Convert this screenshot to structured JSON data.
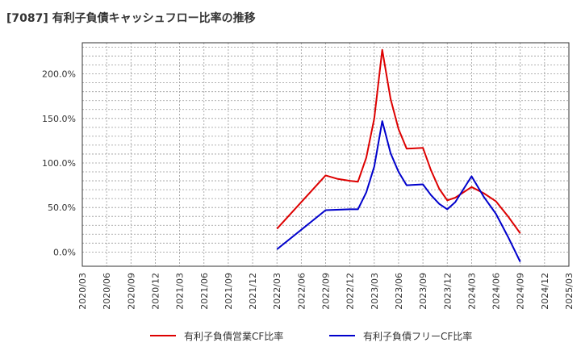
{
  "chart_data": {
    "type": "line",
    "title": "[7087]  有利子負債キャッシュフロー比率の推移",
    "x_ticks": [
      "2020/03",
      "2020/06",
      "2020/09",
      "2020/12",
      "2021/03",
      "2021/06",
      "2021/09",
      "2021/12",
      "2022/03",
      "2022/06",
      "2022/09",
      "2022/12",
      "2023/03",
      "2023/06",
      "2023/09",
      "2023/12",
      "2024/03",
      "2024/06",
      "2024/09",
      "2024/12",
      "2025/03"
    ],
    "y_ticks": [
      "0.0%",
      "50.0%",
      "100.0%",
      "150.0%",
      "200.0%"
    ],
    "y_tick_values": [
      0,
      50,
      100,
      150,
      200
    ],
    "ylim": [
      -16,
      235
    ],
    "grid": true,
    "legend_position": "bottom",
    "series": [
      {
        "name": "有利子負債営業CF比率",
        "color": "#dd0000",
        "points": [
          [
            8,
            26
          ],
          [
            10,
            86
          ],
          [
            10.5,
            82
          ],
          [
            11,
            80
          ],
          [
            11.33,
            79
          ],
          [
            11.67,
            106
          ],
          [
            12,
            150
          ],
          [
            12.33,
            227
          ],
          [
            12.67,
            172
          ],
          [
            13,
            138
          ],
          [
            13.33,
            116
          ],
          [
            14,
            117
          ],
          [
            14.33,
            92
          ],
          [
            14.67,
            71
          ],
          [
            15,
            58
          ],
          [
            15.33,
            61
          ],
          [
            16,
            73
          ],
          [
            16.5,
            66
          ],
          [
            17,
            57
          ],
          [
            17.5,
            40
          ],
          [
            18,
            21
          ]
        ]
      },
      {
        "name": "有利子負債フリーCF比率",
        "color": "#0000cc",
        "points": [
          [
            8,
            3
          ],
          [
            10,
            47
          ],
          [
            11,
            48
          ],
          [
            11.33,
            48
          ],
          [
            11.67,
            67
          ],
          [
            12,
            96
          ],
          [
            12.33,
            147
          ],
          [
            12.67,
            111
          ],
          [
            13,
            90
          ],
          [
            13.33,
            75
          ],
          [
            14,
            76
          ],
          [
            14.33,
            64
          ],
          [
            14.67,
            54
          ],
          [
            15,
            48
          ],
          [
            15.33,
            56
          ],
          [
            16,
            85
          ],
          [
            16.5,
            62
          ],
          [
            17,
            43
          ],
          [
            17.5,
            17
          ],
          [
            18,
            -11
          ]
        ]
      }
    ]
  }
}
